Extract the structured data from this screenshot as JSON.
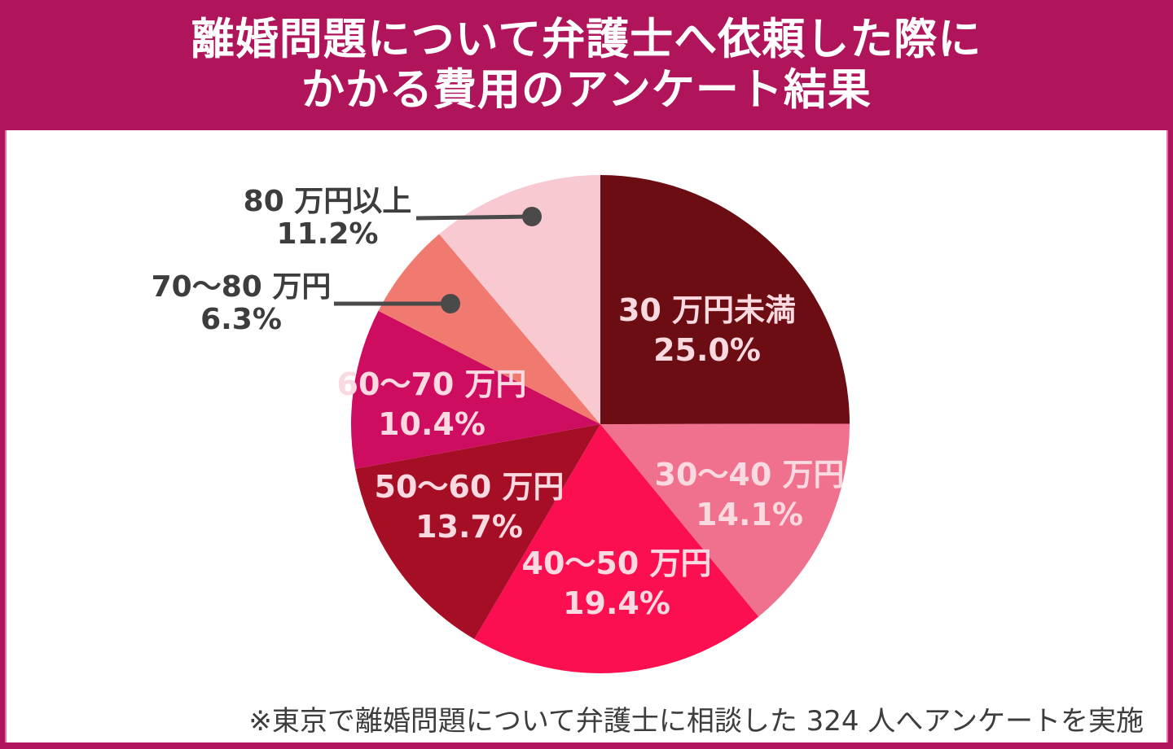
{
  "header": {
    "title_line1": "離婚問題について弁護士へ依頼した際に",
    "title_line2": "かかる費用のアンケート結果"
  },
  "chart_data": {
    "type": "pie",
    "title": "離婚問題について弁護士へ依頼した際にかかる費用のアンケート結果",
    "unit": "percent",
    "start_angle_deg": 0,
    "direction": "clockwise",
    "legend": "none",
    "slices": [
      {
        "label": "30 万円未満",
        "value": 25.0,
        "pct_display": "25.0%",
        "color": "#6B0D12",
        "label_placement": "inside"
      },
      {
        "label": "30〜40 万円",
        "value": 14.1,
        "pct_display": "14.1%",
        "color": "#F0718D",
        "label_placement": "inside"
      },
      {
        "label": "40〜50 万円",
        "value": 19.4,
        "pct_display": "19.4%",
        "color": "#FB0F51",
        "label_placement": "inside"
      },
      {
        "label": "50〜60 万円",
        "value": 13.7,
        "pct_display": "13.7%",
        "color": "#A60E26",
        "label_placement": "inside"
      },
      {
        "label": "60〜70 万円",
        "value": 10.4,
        "pct_display": "10.4%",
        "color": "#CF0D60",
        "label_placement": "inside"
      },
      {
        "label": "70〜80 万円",
        "value": 6.3,
        "pct_display": "6.3%",
        "color": "#F17A70",
        "label_placement": "outside"
      },
      {
        "label": "80 万円以上",
        "value": 11.2,
        "pct_display": "11.2%",
        "color": "#F8C9D1",
        "label_placement": "outside"
      }
    ]
  },
  "footer": {
    "note": "※東京で離婚問題について弁護士に相談した 324 人へアンケートを実施"
  },
  "colors": {
    "banner_bg": "#B0145A",
    "banner_text": "#FFFFFF",
    "inside_label_text": "#FBD9E0",
    "outside_label_text": "#3D3D3D",
    "callout": "#4A4A4A",
    "background": "#FFFFFF"
  }
}
